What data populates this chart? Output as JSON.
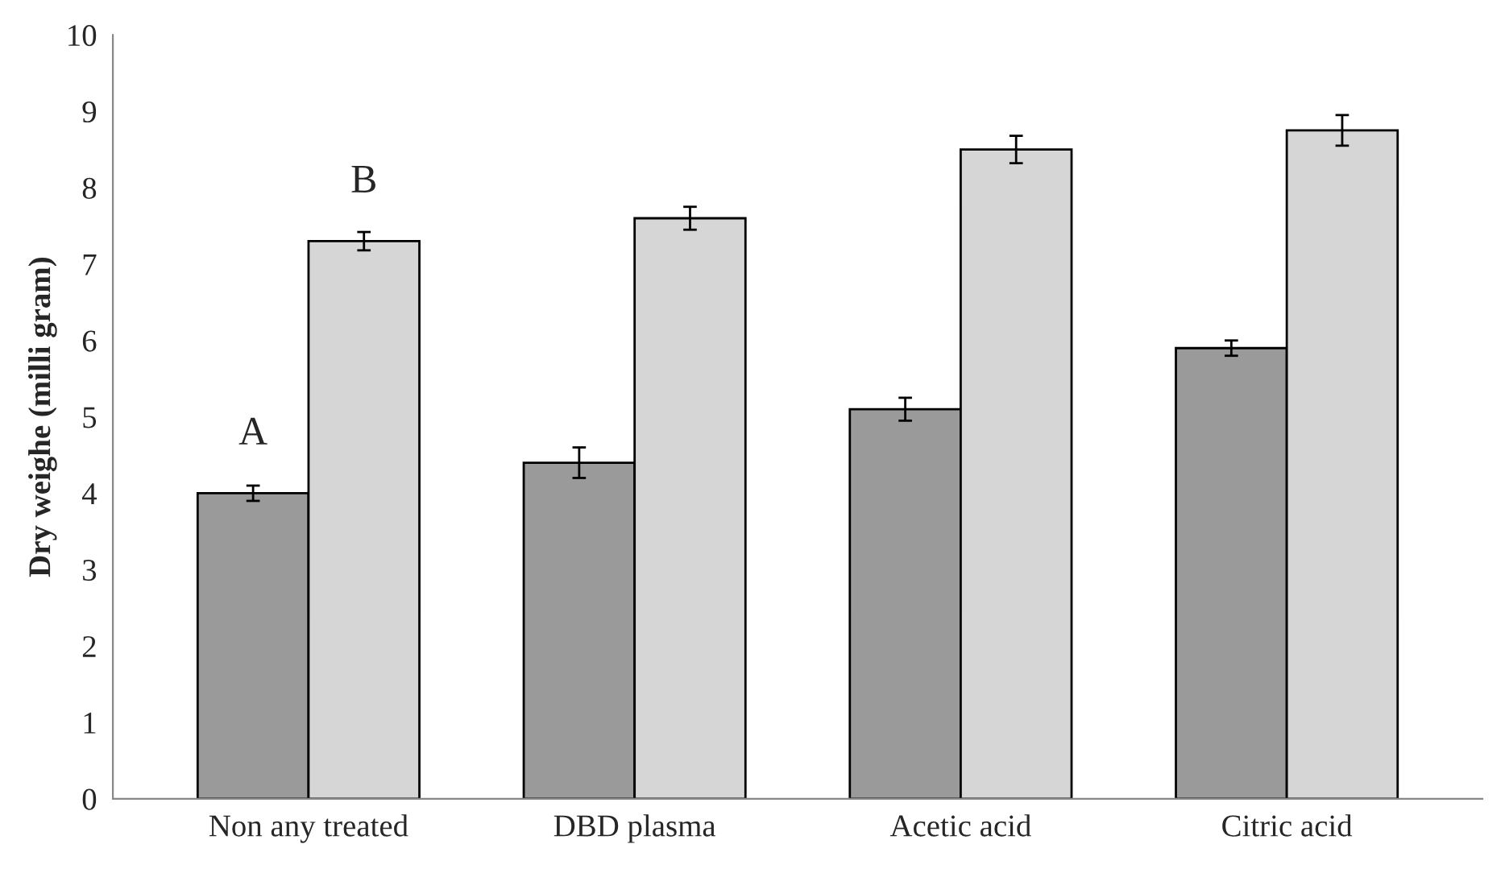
{
  "chart_data": {
    "type": "bar",
    "ylabel": "Dry weighe (milli gram)",
    "categories": [
      "Non any treated",
      "DBD plasma",
      "Acetic acid",
      "Citric acid"
    ],
    "series": [
      {
        "color": "#9a9a9a",
        "values": [
          4.0,
          4.4,
          5.1,
          5.9
        ],
        "errors": [
          0.1,
          0.2,
          0.15,
          0.1
        ]
      },
      {
        "color": "#d6d6d6",
        "values": [
          7.3,
          7.6,
          8.5,
          8.75
        ],
        "errors": [
          0.12,
          0.15,
          0.18,
          0.2
        ]
      }
    ],
    "ylim": [
      0,
      10
    ],
    "yticks": [
      0,
      1,
      2,
      3,
      4,
      5,
      6,
      7,
      8,
      9,
      10
    ],
    "grid": false,
    "legend": false,
    "annotations": [
      {
        "text": "A",
        "x": "Non any treated",
        "y": 4.0
      },
      {
        "text": "B",
        "x": "Non any treated",
        "y": 7.3
      }
    ]
  }
}
